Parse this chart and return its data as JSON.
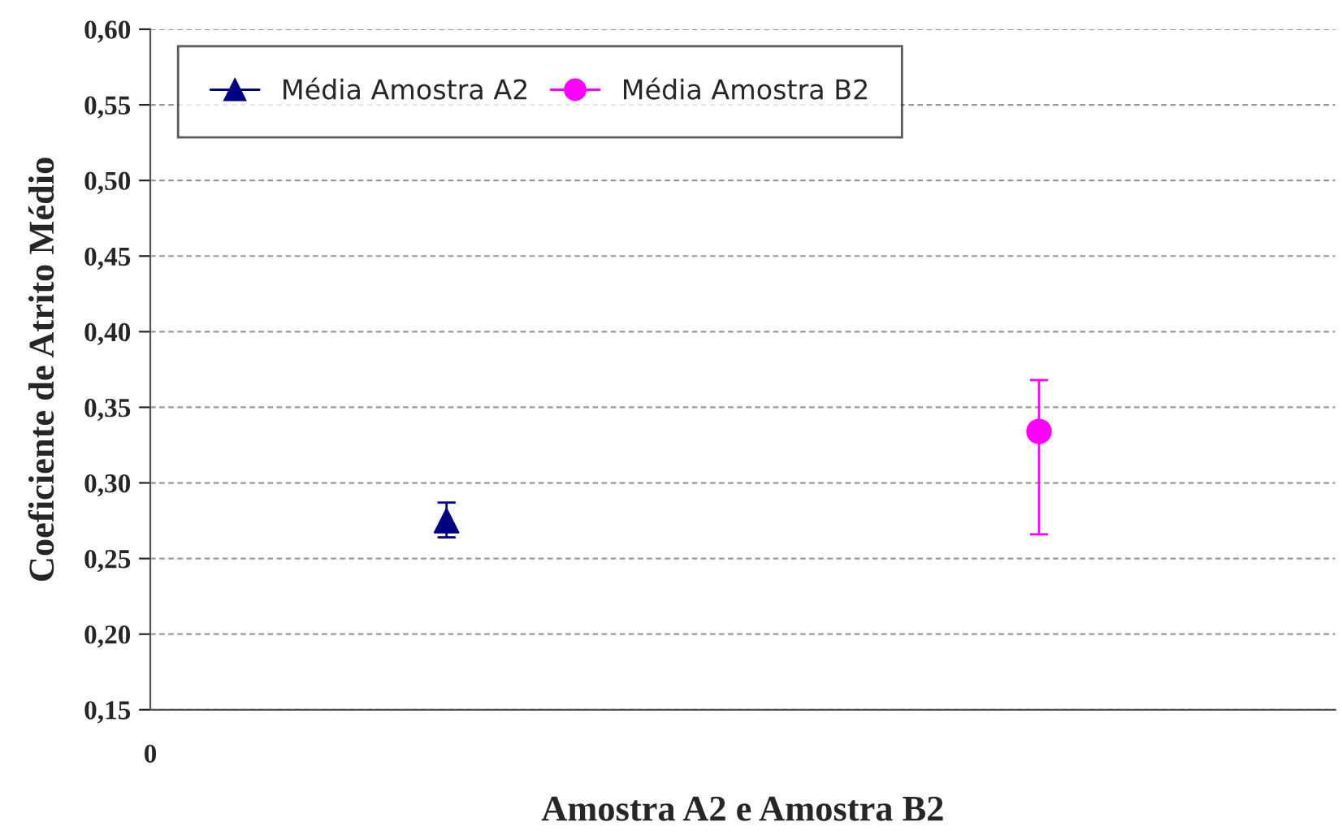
{
  "chart_data": {
    "type": "scatter",
    "xlabel": "Amostra A2 e Amostra B2",
    "ylabel": "Coeficiente de Atrito Médio",
    "categories": [
      null,
      null,
      null
    ],
    "annotations": [
      "0"
    ],
    "ylim": [
      0.15,
      0.6
    ],
    "yticks": [
      {
        "value": 0.15,
        "label": "0,15"
      },
      {
        "value": 0.2,
        "label": "0,20"
      },
      {
        "value": 0.25,
        "label": "0,25"
      },
      {
        "value": 0.3,
        "label": "0,30"
      },
      {
        "value": 0.35,
        "label": "0,35"
      },
      {
        "value": 0.4,
        "label": "0,40"
      },
      {
        "value": 0.45,
        "label": "0,45"
      },
      {
        "value": 0.5,
        "label": "0,50"
      },
      {
        "value": 0.55,
        "label": "0,55"
      },
      {
        "value": 0.6,
        "label": "0,60"
      }
    ],
    "grid": "y",
    "legend": "top left",
    "series": [
      {
        "name": "Média Amostra A2",
        "color": "#000080",
        "marker": "triangle",
        "values": [
          0.275,
          null,
          null
        ],
        "errors": [
          [
            0.264,
            0.287
          ],
          null,
          null
        ]
      },
      {
        "name": "Média Amostra B2",
        "color": "#ff00ff",
        "marker": "circle",
        "values": [
          null,
          null,
          0.334
        ],
        "errors": [
          null,
          null,
          [
            0.266,
            0.368
          ]
        ]
      }
    ]
  }
}
